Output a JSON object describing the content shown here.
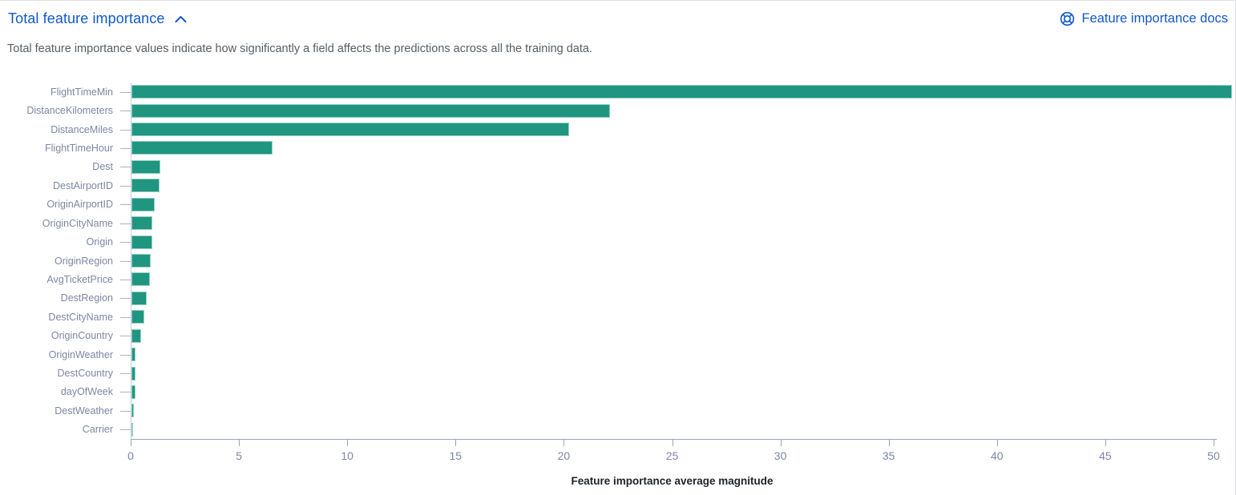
{
  "header": {
    "title": "Total feature importance",
    "collapse_icon": "chevron-up-icon",
    "docs_link": {
      "label": "Feature importance docs",
      "icon": "help-docs-icon"
    }
  },
  "description": "Total feature importance values indicate how significantly a field affects the predictions across all the training data.",
  "colors": {
    "bar": "#20957f",
    "bar_border": "#90d2c2",
    "link_blue": "#1158cd",
    "axis_label_text": "#7d87a3",
    "description_text": "#575c66",
    "x_axis_line": "#9aa3b5",
    "y_axis_line": "#c7ccda"
  },
  "chart_data": {
    "type": "bar",
    "orientation": "horizontal",
    "title": "Total feature importance",
    "categories": [
      "FlightTimeMin",
      "DistanceKilometers",
      "DistanceMiles",
      "FlightTimeHour",
      "Dest",
      "DestAirportID",
      "OriginAirportID",
      "OriginCityName",
      "Origin",
      "OriginRegion",
      "AvgTicketPrice",
      "DestRegion",
      "DestCityName",
      "OriginCountry",
      "OriginWeather",
      "DestCountry",
      "dayOfWeek",
      "DestWeather",
      "Carrier"
    ],
    "values": [
      50.8,
      22.1,
      20.2,
      6.5,
      1.33,
      1.3,
      1.07,
      0.97,
      0.95,
      0.88,
      0.84,
      0.7,
      0.58,
      0.44,
      0.19,
      0.17,
      0.17,
      0.12,
      0.06
    ],
    "xlabel": "Feature importance average magnitude",
    "ylabel": "",
    "xticks": [
      0,
      5,
      10,
      15,
      20,
      25,
      30,
      35,
      40,
      45,
      50
    ],
    "xlim": [
      0,
      51
    ],
    "grid": false,
    "legend": false
  }
}
